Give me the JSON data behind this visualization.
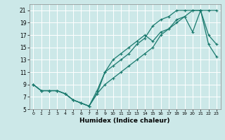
{
  "xlabel": "Humidex (Indice chaleur)",
  "bg_color": "#cce8e8",
  "grid_color": "#ffffff",
  "line_color": "#1a7a6e",
  "xlim": [
    -0.5,
    23.5
  ],
  "ylim": [
    5,
    22
  ],
  "xticks": [
    0,
    1,
    2,
    3,
    4,
    5,
    6,
    7,
    8,
    9,
    10,
    11,
    12,
    13,
    14,
    15,
    16,
    17,
    18,
    19,
    20,
    21,
    22,
    23
  ],
  "yticks": [
    5,
    7,
    9,
    11,
    13,
    15,
    17,
    19,
    21
  ],
  "line1_x": [
    0,
    1,
    2,
    3,
    4,
    5,
    6,
    7,
    8,
    9,
    10,
    11,
    12,
    13,
    14,
    15,
    16,
    17,
    18,
    19,
    20,
    21,
    22,
    23
  ],
  "line1_y": [
    9,
    8,
    8,
    8,
    7.5,
    6.5,
    6,
    5.5,
    7.5,
    9,
    10,
    11,
    12,
    13,
    14,
    15,
    17,
    18,
    19,
    20,
    21,
    21,
    21,
    21
  ],
  "line2_x": [
    0,
    1,
    2,
    3,
    4,
    5,
    6,
    7,
    8,
    9,
    10,
    11,
    12,
    13,
    14,
    15,
    16,
    17,
    18,
    19,
    20,
    21,
    22,
    23
  ],
  "line2_y": [
    9,
    8,
    8,
    8,
    7.5,
    6.5,
    6,
    5.5,
    7.5,
    11,
    12,
    13,
    14,
    15.5,
    16.5,
    18.5,
    19.5,
    20,
    21,
    21,
    21,
    21,
    17,
    15.5
  ],
  "line3_x": [
    0,
    1,
    2,
    3,
    4,
    5,
    6,
    7,
    8,
    9,
    10,
    11,
    12,
    13,
    14,
    15,
    16,
    17,
    18,
    19,
    20,
    21,
    22,
    23
  ],
  "line3_y": [
    9,
    8,
    8,
    8,
    7.5,
    6.5,
    6,
    5.5,
    8,
    11,
    13,
    14,
    15,
    16,
    17,
    16,
    17.5,
    18,
    19.5,
    20,
    17.5,
    21,
    15.5,
    13.5
  ]
}
